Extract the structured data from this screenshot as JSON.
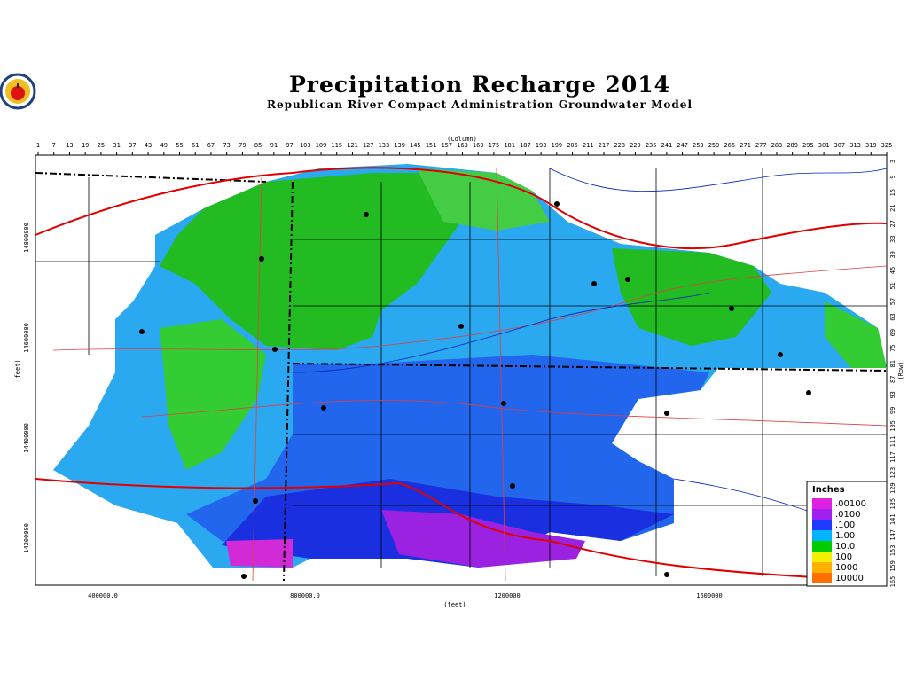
{
  "header": {
    "title": "Precipitation Recharge 2014",
    "subtitle": "Republican River Compact Administration Groundwater Model"
  },
  "axes": {
    "column_label": "(Column)",
    "row_label": "(Row)",
    "x_feet_label": "(feet)",
    "y_feet_label": "(feet)",
    "columns": [
      1,
      7,
      13,
      19,
      25,
      31,
      37,
      43,
      49,
      55,
      61,
      67,
      73,
      79,
      85,
      91,
      97,
      103,
      109,
      115,
      121,
      127,
      133,
      139,
      145,
      151,
      157,
      163,
      169,
      175,
      181,
      187,
      193,
      199,
      205,
      211,
      217,
      223,
      229,
      235,
      241,
      247,
      253,
      259,
      265,
      271,
      277,
      283,
      289,
      295,
      301,
      307,
      313,
      319,
      325
    ],
    "rows": [
      3,
      9,
      15,
      21,
      27,
      33,
      39,
      45,
      51,
      57,
      63,
      69,
      75,
      81,
      87,
      93,
      99,
      105,
      111,
      117,
      123,
      129,
      135,
      141,
      147,
      153,
      159,
      165
    ],
    "x_feet": [
      "400000.0",
      "800000.0",
      "1200000",
      "1600000"
    ],
    "y_feet": [
      "14800000",
      "14600000",
      "14400000",
      "14200000"
    ]
  },
  "legend": {
    "title": "Inches",
    "items": [
      {
        "label": ".00100",
        "color": "#e020e0"
      },
      {
        "label": ".0100",
        "color": "#a020f0"
      },
      {
        "label": ".100",
        "color": "#1e3cff"
      },
      {
        "label": "1.00",
        "color": "#00b4ff"
      },
      {
        "label": "10.0",
        "color": "#00cc00"
      },
      {
        "label": "100",
        "color": "#f0f000"
      },
      {
        "label": "1000",
        "color": "#ffb000"
      },
      {
        "label": "10000",
        "color": "#ff7000"
      }
    ]
  }
}
